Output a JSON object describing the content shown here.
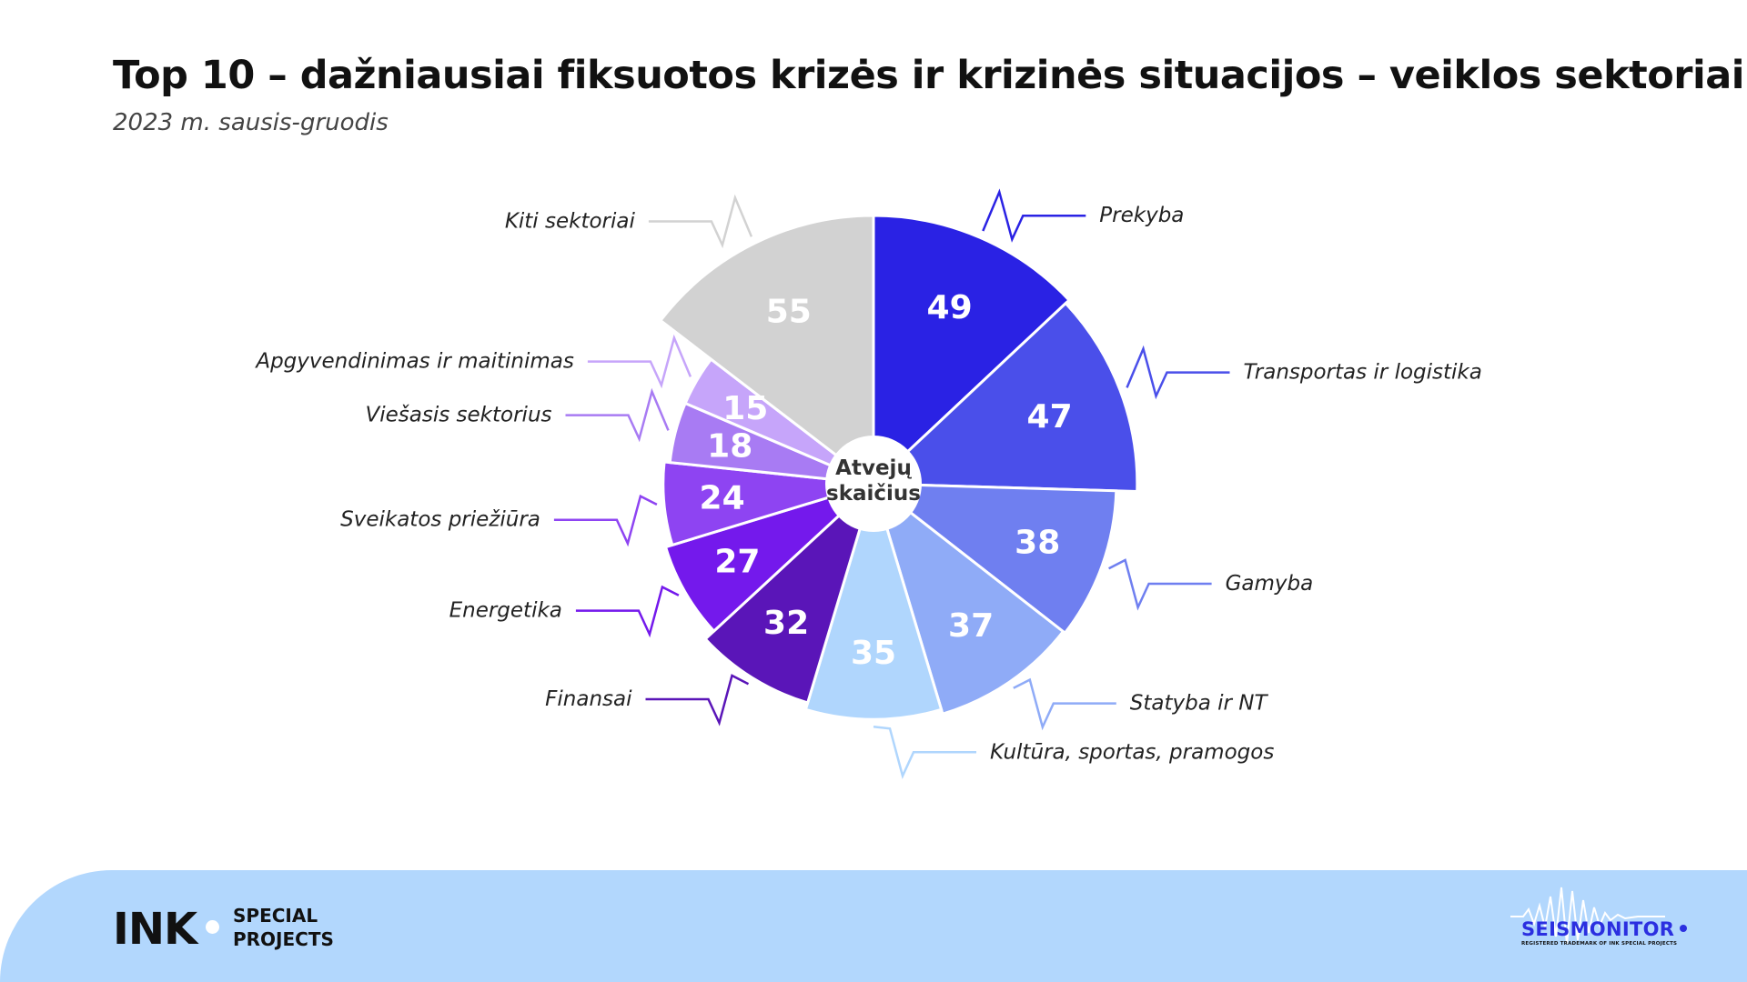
{
  "header": {
    "title": "Top 10 – dažniausiai fiksuotos krizės ir krizinės situacijos – veiklos sektoriai",
    "subtitle": "2023 m. sausis-gruodis"
  },
  "chart_data": {
    "type": "pie",
    "variant": "donut",
    "title": "Top 10 – dažniausiai fiksuotos krizės ir krizinės situacijos – veiklos sektoriai",
    "subtitle": "2023 m. sausis-gruodis",
    "center_label": [
      "Atvejų",
      "skaičius"
    ],
    "label_style": "seismograph-leader-lines",
    "slices": [
      {
        "label": "Prekyba",
        "value": 49,
        "color": "#2a22e4"
      },
      {
        "label": "Transportas ir logistika",
        "value": 47,
        "color": "#4a4fea"
      },
      {
        "label": "Gamyba",
        "value": 38,
        "color": "#6f7ff0"
      },
      {
        "label": "Statyba ir NT",
        "value": 37,
        "color": "#8fabf7"
      },
      {
        "label": "Kultūra, sportas, pramogos",
        "value": 35,
        "color": "#b0d6fd"
      },
      {
        "label": "Finansai",
        "value": 32,
        "color": "#5a15b8"
      },
      {
        "label": "Energetika",
        "value": 27,
        "color": "#7419ec"
      },
      {
        "label": "Sveikatos priežiūra",
        "value": 24,
        "color": "#8e44f2"
      },
      {
        "label": "Viešasis sektorius",
        "value": 18,
        "color": "#a87bf3"
      },
      {
        "label": "Apgyvendinimas ir maitinimas",
        "value": 15,
        "color": "#c6a5fa"
      },
      {
        "label": "Kiti sektoriai",
        "value": 55,
        "color": "#d2d2d2"
      }
    ]
  },
  "footer": {
    "publisher_logo": "INK",
    "special_line1": "SPECIAL",
    "special_line2": "PROJECTS",
    "brand": "SEISMONITOR",
    "brand_tagline": "REGISTERED TRADEMARK OF INK SPECIAL PROJECTS",
    "background_color": "#b2d7fd",
    "brand_color": "#2b2fe0"
  }
}
